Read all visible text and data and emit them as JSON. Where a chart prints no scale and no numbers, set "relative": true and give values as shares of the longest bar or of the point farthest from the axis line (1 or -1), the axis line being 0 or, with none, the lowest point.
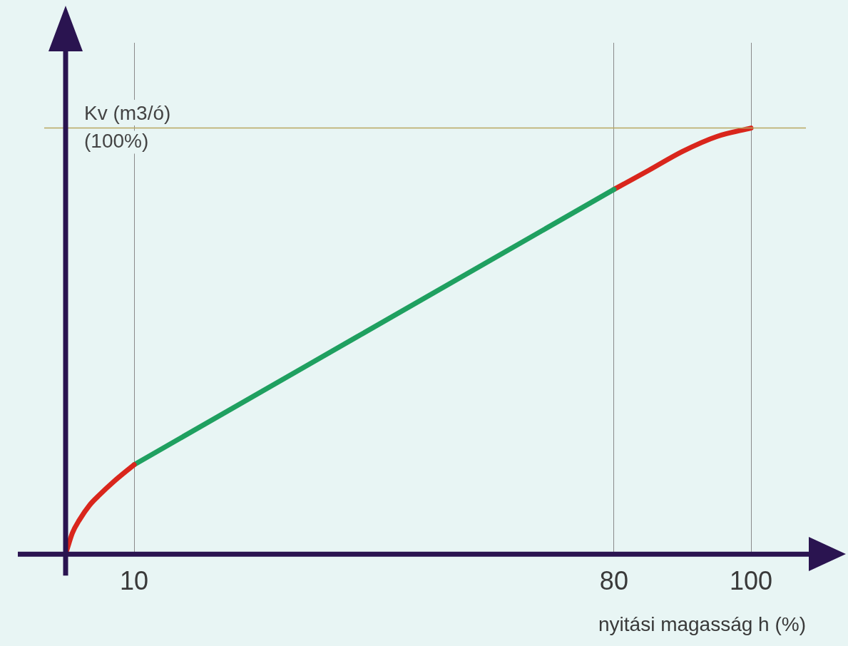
{
  "chart_data": {
    "type": "line",
    "relative": true,
    "xlabel": "nyitási magasság h (%)",
    "ylabel": "Kv (m3/ó)",
    "xlim": [
      0,
      108
    ],
    "xticks": [
      10,
      80,
      100
    ],
    "grid": "x",
    "marker": "none",
    "series": [
      {
        "color": "#d9261c",
        "x": [
          0,
          1,
          2,
          3.5,
          5,
          7,
          10
        ],
        "values": [
          0,
          0.05,
          0.08,
          0.115,
          0.14,
          0.17,
          0.21
        ]
      },
      {
        "color": "#1fa060",
        "x": [
          10,
          80
        ],
        "values": [
          0.21,
          0.856
        ]
      },
      {
        "color": "#d9261c",
        "x": [
          80,
          85,
          90,
          95,
          100
        ],
        "values": [
          0.856,
          0.9,
          0.945,
          0.98,
          1
        ]
      }
    ],
    "ref_lines": [
      {
        "axis": "y",
        "value": 1,
        "label": "(100%)",
        "color": "#b8a860"
      }
    ]
  }
}
